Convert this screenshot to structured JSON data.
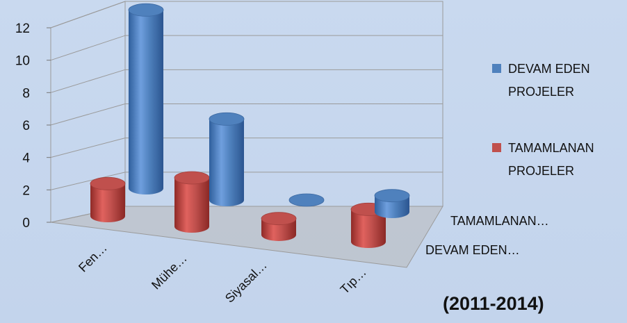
{
  "chart_data": {
    "type": "bar",
    "style": "3d-cylinder",
    "categories": [
      "Fen…",
      "Mühe…",
      "Siyasal…",
      "Tıp…"
    ],
    "series": [
      {
        "name": "DEVAM EDEN PROJELER",
        "legend_lines": [
          "DEVAM EDEN",
          "PROJELER"
        ],
        "depth_label": "DEVAM EDEN…",
        "color": "#4f81bd",
        "values": [
          11,
          5,
          0,
          1
        ]
      },
      {
        "name": "TAMAMLANAN PROJELER",
        "legend_lines": [
          "TAMAMLANAN",
          "PROJELER"
        ],
        "depth_label": "TAMAMLANAN…",
        "color": "#c0504d",
        "values": [
          2,
          3,
          1,
          2
        ]
      }
    ],
    "yticks": [
      "0",
      "2",
      "4",
      "6",
      "8",
      "10",
      "12"
    ],
    "ylim": [
      0,
      12
    ],
    "grid": true,
    "legend_position": "right",
    "annotation": "(2011-2014)"
  }
}
